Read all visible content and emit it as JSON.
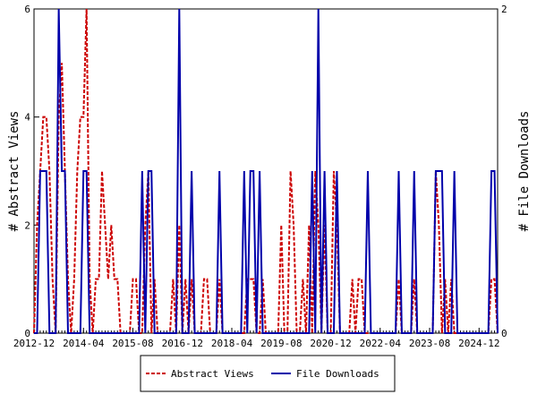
{
  "chart_data": {
    "type": "line",
    "x": [
      "2012-12",
      "2013-01",
      "2013-02",
      "2013-03",
      "2013-04",
      "2013-05",
      "2013-06",
      "2013-07",
      "2013-08",
      "2013-09",
      "2013-10",
      "2013-11",
      "2013-12",
      "2014-01",
      "2014-02",
      "2014-03",
      "2014-04",
      "2014-05",
      "2014-06",
      "2014-07",
      "2014-08",
      "2014-09",
      "2014-10",
      "2014-11",
      "2014-12",
      "2015-01",
      "2015-02",
      "2015-03",
      "2015-04",
      "2015-05",
      "2015-06",
      "2015-07",
      "2015-08",
      "2015-09",
      "2015-10",
      "2015-11",
      "2015-12",
      "2016-01",
      "2016-02",
      "2016-03",
      "2016-04",
      "2016-05",
      "2016-06",
      "2016-07",
      "2016-08",
      "2016-09",
      "2016-10",
      "2016-11",
      "2016-12",
      "2017-01",
      "2017-02",
      "2017-03",
      "2017-04",
      "2017-05",
      "2017-06",
      "2017-07",
      "2017-08",
      "2017-09",
      "2017-10",
      "2017-11",
      "2017-12",
      "2018-01",
      "2018-02",
      "2018-03",
      "2018-04",
      "2018-05",
      "2018-06",
      "2018-07",
      "2018-08",
      "2018-09",
      "2018-10",
      "2018-11",
      "2018-12",
      "2019-01",
      "2019-02",
      "2019-03",
      "2019-04",
      "2019-05",
      "2019-06",
      "2019-07",
      "2019-08",
      "2019-09",
      "2019-10",
      "2019-11",
      "2019-12",
      "2020-01",
      "2020-02",
      "2020-03",
      "2020-04",
      "2020-05",
      "2020-06",
      "2020-07",
      "2020-08",
      "2020-09",
      "2020-10",
      "2020-11",
      "2020-12",
      "2021-01",
      "2021-02",
      "2021-03",
      "2021-04",
      "2021-05",
      "2021-06",
      "2021-07",
      "2021-08",
      "2021-09",
      "2021-10",
      "2021-11",
      "2021-12",
      "2022-01",
      "2022-02",
      "2022-03",
      "2022-04",
      "2022-05",
      "2022-06",
      "2022-07",
      "2022-08",
      "2022-09",
      "2022-10",
      "2022-11",
      "2022-12",
      "2023-01",
      "2023-02",
      "2023-03",
      "2023-04",
      "2023-05",
      "2023-06",
      "2023-07",
      "2023-08",
      "2023-09",
      "2023-10",
      "2023-11",
      "2023-12",
      "2024-01",
      "2024-02",
      "2024-03",
      "2024-04",
      "2024-05",
      "2024-06",
      "2024-07",
      "2024-08",
      "2024-09",
      "2024-10",
      "2024-11",
      "2024-12",
      "2025-01",
      "2025-02",
      "2025-03",
      "2025-04",
      "2025-05",
      "2025-06"
    ],
    "xlim": [
      "2012-12",
      "2025-06"
    ],
    "xticks": [
      "2012-12",
      "2014-04",
      "2015-08",
      "2016-12",
      "2018-04",
      "2019-08",
      "2020-12",
      "2022-04",
      "2023-08",
      "2024-12"
    ],
    "ylabel": "# Abstract Views",
    "y2label": "# File Downloads",
    "ylim": [
      0,
      6
    ],
    "yticks": [
      0,
      2,
      4,
      6
    ],
    "y2lim": [
      0,
      2
    ],
    "y2ticks": [
      0,
      2
    ],
    "legend": "bottom",
    "series": [
      {
        "name": "Abstract Views",
        "color": "#cc0000",
        "dash": true,
        "values": [
          0,
          2,
          3,
          4,
          4,
          3,
          1,
          0,
          4,
          5,
          3,
          1,
          0,
          1,
          3,
          4,
          4,
          6,
          1,
          0,
          1,
          1,
          3,
          2,
          1,
          2,
          1,
          1,
          0,
          0,
          0,
          0,
          1,
          1,
          0,
          0,
          2,
          3,
          0,
          1,
          0,
          0,
          0,
          0,
          0,
          1,
          0,
          2,
          0,
          1,
          0,
          1,
          0,
          0,
          0,
          1,
          1,
          0,
          0,
          0,
          1,
          0,
          0,
          0,
          0,
          0,
          0,
          0,
          0,
          1,
          1,
          1,
          0,
          0,
          1,
          0,
          0,
          0,
          0,
          0,
          2,
          0,
          0,
          3,
          2,
          0,
          0,
          1,
          0,
          2,
          0,
          3,
          2,
          0,
          2,
          0,
          0,
          3,
          2,
          0,
          0,
          0,
          0,
          1,
          0,
          1,
          1,
          0,
          0,
          0,
          0,
          0,
          0,
          0,
          0,
          0,
          0,
          0,
          1,
          0,
          0,
          0,
          0,
          1,
          0,
          0,
          0,
          0,
          0,
          0,
          3,
          2,
          0,
          1,
          0,
          1,
          0,
          0,
          0,
          0,
          0,
          0,
          0,
          0,
          0,
          0,
          0,
          0,
          1,
          1,
          0
        ]
      },
      {
        "name": "File Downloads",
        "color": "#0000aa",
        "axis": "y2",
        "values": [
          0,
          0,
          1,
          1,
          1,
          0,
          0,
          0,
          2,
          1,
          1,
          0,
          0,
          0,
          0,
          0,
          1,
          1,
          0,
          0,
          0,
          0,
          0,
          0,
          0,
          0,
          0,
          0,
          0,
          0,
          0,
          0,
          0,
          0,
          0,
          1,
          0,
          1,
          1,
          0,
          0,
          0,
          0,
          0,
          0,
          0,
          0,
          2,
          0,
          0,
          0,
          1,
          0,
          0,
          0,
          0,
          0,
          0,
          0,
          0,
          1,
          0,
          0,
          0,
          0,
          0,
          0,
          0,
          1,
          0,
          1,
          1,
          0,
          1,
          0,
          0,
          0,
          0,
          0,
          0,
          0,
          0,
          0,
          0,
          0,
          0,
          0,
          0,
          0,
          0,
          1,
          0,
          2,
          0,
          1,
          0,
          0,
          0,
          1,
          0,
          0,
          0,
          0,
          0,
          0,
          0,
          0,
          0,
          1,
          0,
          0,
          0,
          0,
          0,
          0,
          0,
          0,
          0,
          1,
          0,
          0,
          0,
          0,
          1,
          0,
          0,
          0,
          0,
          0,
          0,
          1,
          1,
          1,
          0,
          0,
          0,
          1,
          0,
          0,
          0,
          0,
          0,
          0,
          0,
          0,
          0,
          0,
          0,
          1,
          1,
          0
        ]
      }
    ]
  }
}
